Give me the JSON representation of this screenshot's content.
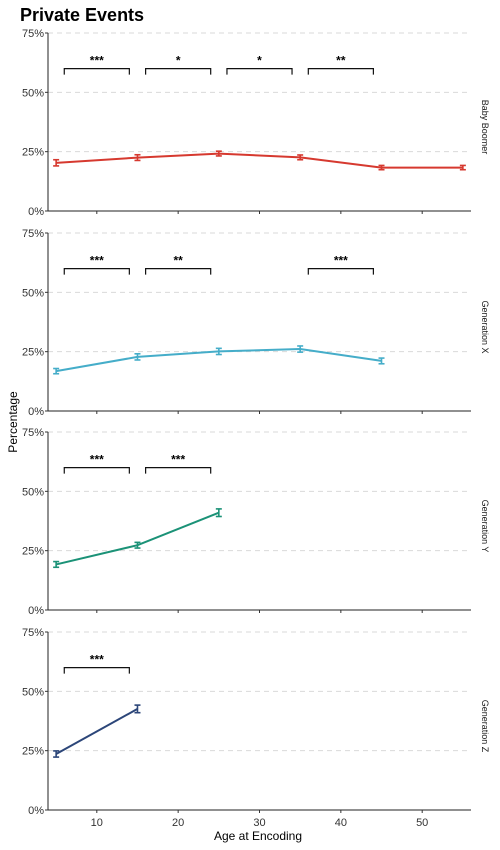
{
  "chart_data": {
    "type": "line",
    "title": "Private Events",
    "xlabel": "Age at Encoding",
    "ylabel": "Percentage",
    "xlim": [
      4,
      56
    ],
    "ylim": [
      0,
      75
    ],
    "x_ticks": [
      10,
      20,
      30,
      40,
      50
    ],
    "y_ticks": [
      0,
      25,
      50,
      75
    ],
    "y_tick_labels": [
      "0%",
      "25%",
      "50%",
      "75%"
    ],
    "grid": "horizontal dashed",
    "panels": [
      {
        "name": "Baby Boomer",
        "color": "#d6392f",
        "x": [
          5,
          15,
          25,
          35,
          45,
          55
        ],
        "y": [
          20.3,
          22.5,
          24.2,
          22.6,
          18.3,
          18.3
        ],
        "err": [
          1.3,
          1.2,
          1.0,
          1.0,
          0.9,
          0.9
        ],
        "sig": [
          {
            "x1": 6,
            "x2": 14,
            "label": "***"
          },
          {
            "x1": 16,
            "x2": 24,
            "label": "*"
          },
          {
            "x1": 26,
            "x2": 34,
            "label": "*"
          },
          {
            "x1": 36,
            "x2": 44,
            "label": "**"
          }
        ]
      },
      {
        "name": "Generation X",
        "color": "#45adc9",
        "x": [
          5,
          15,
          25,
          35,
          45
        ],
        "y": [
          16.8,
          22.8,
          25.1,
          26.1,
          21.1
        ],
        "err": [
          1.1,
          1.3,
          1.3,
          1.3,
          1.2
        ],
        "sig": [
          {
            "x1": 6,
            "x2": 14,
            "label": "***"
          },
          {
            "x1": 16,
            "x2": 24,
            "label": "**"
          },
          {
            "x1": 36,
            "x2": 44,
            "label": "***"
          }
        ]
      },
      {
        "name": "Generation Y",
        "color": "#1b9277",
        "x": [
          5,
          15,
          25
        ],
        "y": [
          19.2,
          27.3,
          41.0
        ],
        "err": [
          1.2,
          1.2,
          1.6
        ],
        "sig": [
          {
            "x1": 6,
            "x2": 14,
            "label": "***"
          },
          {
            "x1": 16,
            "x2": 24,
            "label": "***"
          }
        ]
      },
      {
        "name": "Generation Z",
        "color": "#2c4679",
        "x": [
          5,
          15
        ],
        "y": [
          23.6,
          42.6
        ],
        "err": [
          1.3,
          1.6
        ],
        "sig": [
          {
            "x1": 6,
            "x2": 14,
            "label": "***"
          }
        ]
      }
    ]
  }
}
